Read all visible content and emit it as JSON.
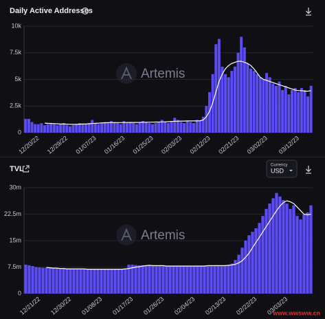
{
  "chart_data": [
    {
      "type": "bar",
      "title": "Daily Active Addresses",
      "watermark": "Artemis",
      "categories": [
        null,
        null,
        null,
        null,
        "12/20/22",
        null,
        null,
        null,
        null,
        null,
        null,
        null,
        null,
        "12/29/22",
        null,
        null,
        null,
        null,
        null,
        null,
        null,
        null,
        "01/07/23",
        null,
        null,
        null,
        null,
        null,
        null,
        null,
        null,
        "01/16/23",
        null,
        null,
        null,
        null,
        null,
        null,
        null,
        null,
        "01/25/23",
        null,
        null,
        null,
        null,
        null,
        null,
        null,
        null,
        "02/03/23",
        null,
        null,
        null,
        null,
        null,
        null,
        null,
        null,
        "02/12/23",
        null,
        null,
        null,
        null,
        null,
        null,
        null,
        null,
        "02/21/23",
        null,
        null,
        null,
        null,
        null,
        null,
        null,
        null,
        "03/02/23",
        null,
        null,
        null,
        null,
        null,
        null,
        null,
        null,
        null,
        "03/12/23",
        null,
        null,
        null,
        null
      ],
      "series": [
        {
          "type": "bar",
          "color": "#5b4cf6",
          "values": [
            1.3,
            1.3,
            1.0,
            0.8,
            0.8,
            0.9,
            0.7,
            0.8,
            0.9,
            0.8,
            0.7,
            0.8,
            0.9,
            0.7,
            0.6,
            0.7,
            0.8,
            0.9,
            0.8,
            0.8,
            0.9,
            1.2,
            0.9,
            0.8,
            0.9,
            1.0,
            0.9,
            1.1,
            1.0,
            0.9,
            0.8,
            1.1,
            0.9,
            1.0,
            0.9,
            0.8,
            1.0,
            1.1,
            1.0,
            0.9,
            0.8,
            0.9,
            1.0,
            1.2,
            1.0,
            0.9,
            1.1,
            1.4,
            1.2,
            1.0,
            0.9,
            1.1,
            1.0,
            0.9,
            1.2,
            1.1,
            1.5,
            2.5,
            3.8,
            5.5,
            8.3,
            8.8,
            6.2,
            5.5,
            5.2,
            5.8,
            6.2,
            7.5,
            9.0,
            8.0,
            6.5,
            6.0,
            5.8,
            5.5,
            5.2,
            5.0,
            5.6,
            5.2,
            4.6,
            4.4,
            4.8,
            4.0,
            4.4,
            3.6,
            4.0,
            4.2,
            3.8,
            4.2,
            4.0,
            3.4,
            4.4
          ]
        },
        {
          "type": "line",
          "color": "#ffffff",
          "values": [
            null,
            null,
            null,
            null,
            null,
            null,
            0.9,
            0.88,
            0.87,
            0.85,
            0.83,
            0.82,
            0.81,
            0.8,
            0.79,
            0.78,
            0.79,
            0.8,
            0.81,
            0.82,
            0.84,
            0.86,
            0.88,
            0.9,
            0.92,
            0.93,
            0.94,
            0.95,
            0.95,
            0.95,
            0.95,
            0.95,
            0.96,
            0.96,
            0.96,
            0.96,
            0.97,
            0.98,
            0.98,
            0.99,
            0.99,
            1.0,
            1.0,
            1.01,
            1.02,
            1.03,
            1.05,
            1.07,
            1.08,
            1.09,
            1.09,
            1.1,
            1.1,
            1.1,
            1.1,
            1.12,
            1.2,
            1.5,
            2.0,
            2.8,
            3.8,
            4.8,
            5.5,
            6.0,
            6.3,
            6.5,
            6.6,
            6.7,
            6.7,
            6.6,
            6.5,
            6.3,
            6.0,
            5.6,
            5.2,
            5.0,
            4.9,
            4.8,
            4.7,
            4.6,
            4.5,
            4.4,
            4.3,
            4.2,
            4.1,
            4.0,
            3.95,
            3.95,
            3.9,
            3.9,
            3.95
          ]
        }
      ],
      "ylim": [
        0,
        10
      ],
      "yticks": [
        0,
        {
          "value": 2.5,
          "label": "2.5k"
        },
        {
          "value": 5,
          "label": "5k"
        },
        {
          "value": 7.5,
          "label": "7.5k"
        },
        {
          "value": 10,
          "label": "10k"
        }
      ],
      "grid": true
    },
    {
      "type": "bar",
      "title": "TVL",
      "watermark": "Artemis",
      "currency_label": "Currency",
      "currency": "USD",
      "footer": "www.wwsww.cn",
      "categories": [
        null,
        null,
        null,
        null,
        "12/21/22",
        null,
        null,
        null,
        null,
        null,
        null,
        null,
        null,
        "12/30/22",
        null,
        null,
        null,
        null,
        null,
        null,
        null,
        null,
        "01/08/23",
        null,
        null,
        null,
        null,
        null,
        null,
        null,
        null,
        "01/17/23",
        null,
        null,
        null,
        null,
        null,
        null,
        null,
        null,
        "01/26/23",
        null,
        null,
        null,
        null,
        null,
        null,
        null,
        null,
        "02/04/23",
        null,
        null,
        null,
        null,
        null,
        null,
        null,
        null,
        "02/13/23",
        null,
        null,
        null,
        null,
        null,
        null,
        null,
        null,
        "02/22/23",
        null,
        null,
        null,
        null,
        null,
        null,
        null,
        null,
        "03/03/23",
        null,
        null,
        null,
        null,
        null,
        null,
        null
      ],
      "series": [
        {
          "type": "bar",
          "color": "#5b4cf6",
          "values": [
            8.2,
            8.0,
            7.8,
            7.5,
            7.4,
            7.3,
            7.3,
            7.2,
            7.2,
            7.1,
            7.1,
            7.0,
            7.0,
            7.1,
            7.0,
            7.0,
            6.9,
            6.9,
            6.9,
            6.9,
            7.0,
            6.9,
            6.9,
            6.9,
            7.0,
            6.9,
            6.9,
            7.0,
            7.0,
            7.1,
            8.2,
            8.2,
            8.1,
            8.0,
            8.0,
            7.9,
            7.9,
            7.9,
            7.8,
            7.8,
            7.8,
            7.9,
            7.9,
            7.8,
            7.8,
            7.9,
            7.9,
            7.8,
            7.8,
            7.8,
            7.8,
            7.9,
            7.9,
            7.9,
            7.8,
            7.9,
            8.0,
            8.0,
            8.0,
            8.1,
            8.5,
            9.5,
            11.0,
            13.0,
            15.0,
            16.5,
            17.5,
            18.5,
            20.0,
            22.0,
            24.0,
            25.5,
            27.0,
            28.5,
            27.5,
            26.5,
            25.5,
            24.0,
            25.0,
            22.0,
            21.0,
            22.5,
            23.0,
            25.0
          ]
        },
        {
          "type": "line",
          "color": "#ffffff",
          "values": [
            null,
            null,
            null,
            null,
            null,
            null,
            7.4,
            7.3,
            7.2,
            7.2,
            7.1,
            7.1,
            7.0,
            7.0,
            7.0,
            7.0,
            7.0,
            7.0,
            6.9,
            6.9,
            6.9,
            6.9,
            6.9,
            6.9,
            6.9,
            6.9,
            6.9,
            6.9,
            6.9,
            7.0,
            7.1,
            7.3,
            7.5,
            7.6,
            7.8,
            7.9,
            8.0,
            7.9,
            7.9,
            7.9,
            7.9,
            7.8,
            7.8,
            7.8,
            7.8,
            7.8,
            7.8,
            7.8,
            7.8,
            7.8,
            7.8,
            7.8,
            7.8,
            7.9,
            7.9,
            7.9,
            7.9,
            7.9,
            7.9,
            8.0,
            8.1,
            8.3,
            8.7,
            9.3,
            10.3,
            11.5,
            13.0,
            14.5,
            16.0,
            17.5,
            19.0,
            20.5,
            22.0,
            23.5,
            24.8,
            25.8,
            26.3,
            26.0,
            25.5,
            24.5,
            23.5,
            22.5,
            22.3,
            22.5
          ]
        }
      ],
      "ylim": [
        0,
        30
      ],
      "yticks": [
        0,
        {
          "value": 7.5,
          "label": "7.5m"
        },
        {
          "value": 15,
          "label": "15m"
        },
        {
          "value": 22.5,
          "label": "22.5m"
        },
        {
          "value": 30,
          "label": "30m"
        }
      ],
      "grid": true
    }
  ]
}
